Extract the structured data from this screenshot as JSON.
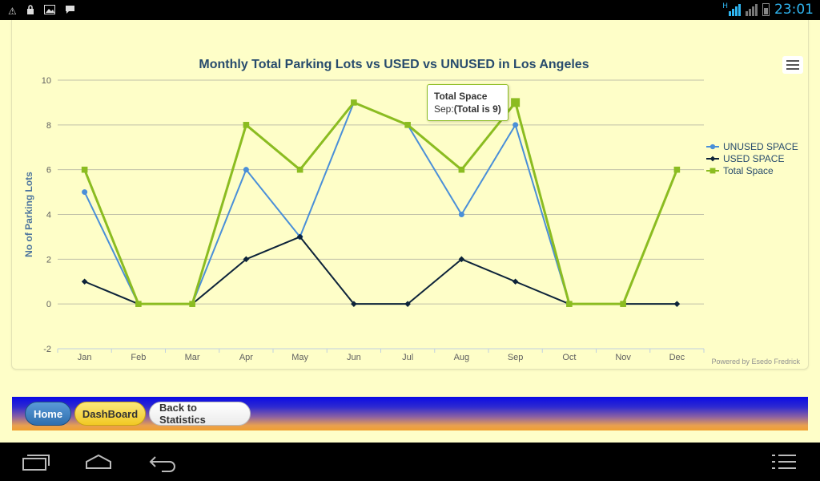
{
  "status_bar": {
    "clock": "23:01",
    "network_label": "H",
    "icons": [
      "warning-icon",
      "lock-icon",
      "image-icon",
      "chat-icon",
      "signal-icon",
      "battery-icon"
    ]
  },
  "chart": {
    "tooltip": {
      "title": "Total Space",
      "body_prefix": "Sep:",
      "body_bold": "(Total is 9)"
    },
    "credit": "Powered by Esedo Fredrick"
  },
  "chart_data": {
    "type": "line",
    "title": "Monthly Total Parking Lots vs USED vs UNUSED in Los Angeles",
    "xlabel": "",
    "ylabel": "No of Parking Lots",
    "categories": [
      "Jan",
      "Feb",
      "Mar",
      "Apr",
      "May",
      "Jun",
      "Jul",
      "Aug",
      "Sep",
      "Oct",
      "Nov",
      "Dec"
    ],
    "ylim": [
      -2,
      10
    ],
    "yticks": [
      -2,
      0,
      2,
      4,
      6,
      8,
      10
    ],
    "grid": true,
    "legend": "right",
    "series": [
      {
        "name": "UNUSED SPACE",
        "color": "#4a8fd8",
        "marker": "circle",
        "values": [
          5,
          0,
          0,
          6,
          3,
          9,
          8,
          4,
          8,
          0,
          0,
          null
        ]
      },
      {
        "name": "USED SPACE",
        "color": "#0d233a",
        "marker": "diamond",
        "values": [
          1,
          0,
          0,
          2,
          3,
          0,
          0,
          2,
          1,
          0,
          0,
          0
        ]
      },
      {
        "name": "Total Space",
        "color": "#8bbc21",
        "marker": "square",
        "values": [
          6,
          0,
          0,
          8,
          6,
          9,
          8,
          6,
          9,
          0,
          0,
          6
        ]
      }
    ]
  },
  "buttons": {
    "home": "Home",
    "dashboard": "DashBoard",
    "back": "Back to Statistics"
  },
  "nav_bar": {
    "icons": [
      "recent-apps-icon",
      "home-icon",
      "back-icon",
      "menu-icon"
    ]
  }
}
